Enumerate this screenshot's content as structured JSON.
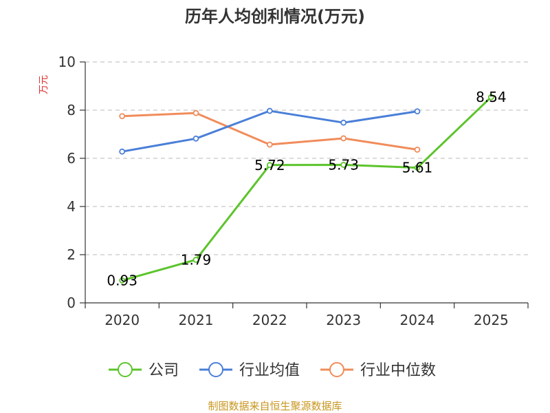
{
  "chart_data": {
    "type": "line",
    "title": "历年人均创利情况(万元)",
    "ylabel": "万元",
    "xlabel": "",
    "categories": [
      "2020",
      "2021",
      "2022",
      "2023",
      "2024",
      "2025"
    ],
    "ylim": [
      0,
      10
    ],
    "yticks": [
      0,
      2,
      4,
      6,
      8,
      10
    ],
    "grid": true,
    "legend_position": "bottom",
    "series": [
      {
        "name": "公司",
        "color": "#5cc42c",
        "values": [
          0.93,
          1.79,
          5.72,
          5.73,
          5.61,
          8.54
        ],
        "data_labels": [
          "0.93",
          "1.79",
          "5.72",
          "5.73",
          "5.61",
          "8.54"
        ]
      },
      {
        "name": "行业均值",
        "color": "#4a7fd8",
        "values": [
          6.28,
          6.82,
          7.97,
          7.48,
          7.95,
          null
        ]
      },
      {
        "name": "行业中位数",
        "color": "#f08c5a",
        "values": [
          7.75,
          7.88,
          6.57,
          6.83,
          6.36,
          null
        ]
      }
    ]
  },
  "footer": {
    "source": "制图数据来自恒生聚源数据库"
  }
}
